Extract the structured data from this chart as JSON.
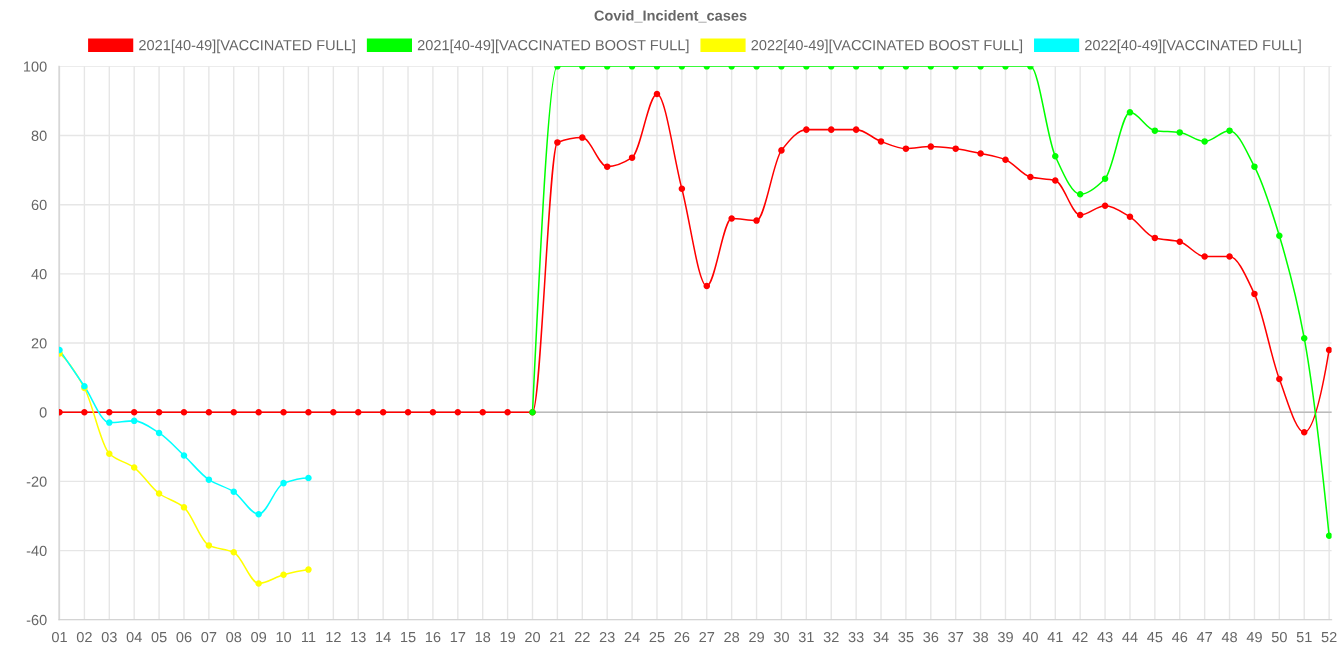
{
  "chart_data": {
    "type": "line",
    "title": "Covid_Incident_cases",
    "categories": [
      "01",
      "02",
      "03",
      "04",
      "05",
      "06",
      "07",
      "08",
      "09",
      "10",
      "11",
      "12",
      "13",
      "14",
      "15",
      "16",
      "17",
      "18",
      "19",
      "20",
      "21",
      "22",
      "23",
      "24",
      "25",
      "26",
      "27",
      "28",
      "29",
      "30",
      "31",
      "32",
      "33",
      "34",
      "35",
      "36",
      "37",
      "38",
      "39",
      "40",
      "41",
      "42",
      "43",
      "44",
      "45",
      "46",
      "47",
      "48",
      "49",
      "50",
      "51",
      "52"
    ],
    "series": [
      {
        "name": "2021[40-49][VACCINATED FULL]",
        "color": "#ff0000",
        "values": [
          0,
          0,
          0,
          0,
          0,
          0,
          0,
          0,
          0,
          0,
          0,
          0,
          0,
          0,
          0,
          0,
          0,
          0,
          0,
          0,
          78,
          79.4,
          71,
          73.6,
          92,
          64.6,
          36.5,
          56,
          55.4,
          75.7,
          81.7,
          81.7,
          81.7,
          78.3,
          76.2,
          76.8,
          76.2,
          74.8,
          73,
          68,
          67,
          57,
          59.7,
          56.5,
          50.4,
          49.3,
          45,
          45,
          34.2,
          9.6,
          -5.8,
          18
        ]
      },
      {
        "name": "2021[40-49][VACCINATED BOOST FULL]",
        "color": "#00ff00",
        "values": [
          null,
          null,
          null,
          null,
          null,
          null,
          null,
          null,
          null,
          null,
          null,
          null,
          null,
          null,
          null,
          null,
          null,
          null,
          null,
          0,
          100,
          100,
          100,
          100,
          100,
          100,
          100,
          100,
          100,
          100,
          100,
          100,
          100,
          100,
          100,
          100,
          100,
          100,
          100,
          100,
          74,
          63,
          67.5,
          86.7,
          81.4,
          80.9,
          78.3,
          81.4,
          71,
          51,
          21.4,
          -35.7
        ]
      },
      {
        "name": "2022[40-49][VACCINATED BOOST FULL]",
        "color": "#ffff00",
        "values": [
          17,
          7,
          -12,
          -16,
          -23.5,
          -27.5,
          -38.5,
          -40.5,
          -49.5,
          -47,
          -45.5,
          null,
          null,
          null,
          null,
          null,
          null,
          null,
          null,
          null,
          null,
          null,
          null,
          null,
          null,
          null,
          null,
          null,
          null,
          null,
          null,
          null,
          null,
          null,
          null,
          null,
          null,
          null,
          null,
          null,
          null,
          null,
          null,
          null,
          null,
          null,
          null,
          null,
          null,
          null,
          null,
          null
        ]
      },
      {
        "name": "2022[40-49][VACCINATED FULL]",
        "color": "#00ffff",
        "values": [
          18,
          7.5,
          -3,
          -2.5,
          -6,
          -12.5,
          -19.5,
          -23,
          -29.5,
          -20.5,
          -19,
          null,
          null,
          null,
          null,
          null,
          null,
          null,
          null,
          null,
          null,
          null,
          null,
          null,
          null,
          null,
          null,
          null,
          null,
          null,
          null,
          null,
          null,
          null,
          null,
          null,
          null,
          null,
          null,
          null,
          null,
          null,
          null,
          null,
          null,
          null,
          null,
          null,
          null,
          null,
          null,
          null
        ]
      }
    ],
    "ylim": [
      -60,
      100
    ],
    "yticks": [
      -60,
      -40,
      -20,
      0,
      20,
      40,
      60,
      80,
      100
    ],
    "grid": true,
    "legend": "top",
    "marker": "circle",
    "line_style": "solid"
  }
}
